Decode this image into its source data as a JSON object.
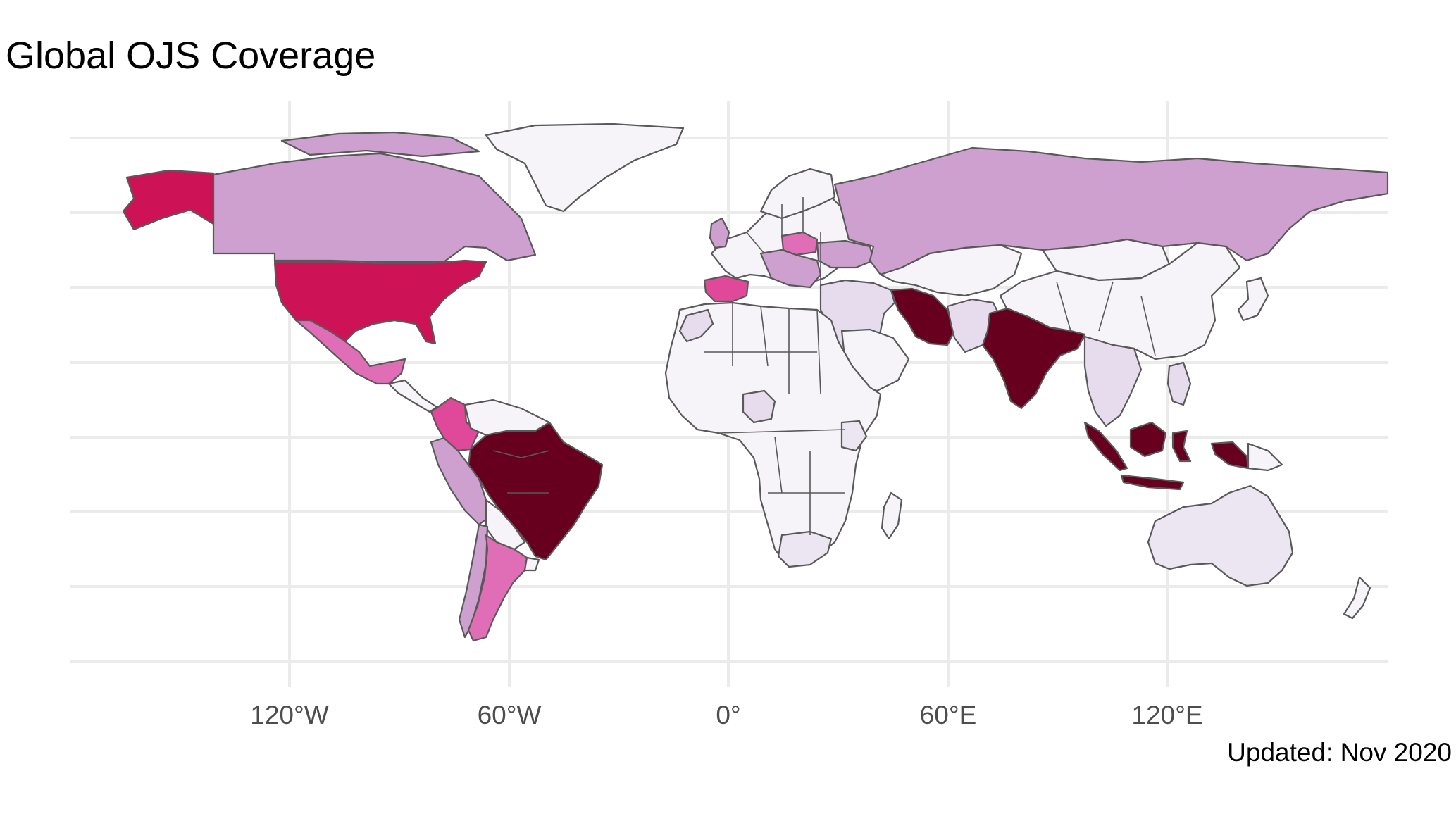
{
  "title": "Global OJS Coverage",
  "caption": "Updated: Nov 2020",
  "map_data": {
    "type": "choropleth",
    "projection": "equirectangular",
    "x_ticks": [
      {
        "lon": -120,
        "label": "120°W"
      },
      {
        "lon": -60,
        "label": "60°W"
      },
      {
        "lon": 0,
        "label": "0°"
      },
      {
        "lon": 60,
        "label": "60°E"
      },
      {
        "lon": 120,
        "label": "120°E"
      }
    ],
    "y_gridlines": [
      80,
      60,
      40,
      20,
      0,
      -20,
      -40,
      -60
    ],
    "x_gridlines": [
      -120,
      -60,
      0,
      60,
      120
    ],
    "legend": "none",
    "palette": {
      "level1": "#f6f3f9",
      "level2": "#e7dcee",
      "level3": "#cda0cf",
      "level4": "#df6eb6",
      "level5": "#e0489a",
      "level6": "#ce1256",
      "level7": "#67001f"
    },
    "background_land": "#f4f1f7",
    "outline_color": "#595959",
    "grid_color": "#ebebeb"
  }
}
